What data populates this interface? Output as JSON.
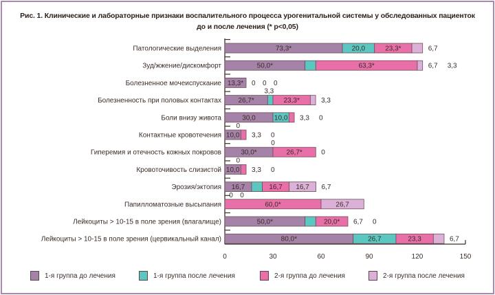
{
  "title": {
    "line1": "Рис. 1. Клинические и лабораторные признаки воспалительного процесса урогенитальной системы у обследованных пациенток",
    "line2": "до и после лечения (* p<0,05)"
  },
  "colors": {
    "g1_before": "#a582a8",
    "g1_after": "#5cc7c1",
    "g2_before": "#e96fa8",
    "g2_after": "#dcb1d8",
    "frame": "#a889ad",
    "axis": "#3a2c26"
  },
  "chart_data": {
    "type": "bar",
    "orientation": "horizontal",
    "stacked": true,
    "title": "Рис. 1. Клинические и лабораторные признаки воспалительного процесса урогенитальной системы у обследованных пациенток до и после лечения (* p<0,05)",
    "xlabel": "",
    "ylabel": "",
    "xlim": [
      0,
      150
    ],
    "xticks": [
      "0",
      "30",
      "60",
      "90",
      "120",
      "150"
    ],
    "grid": false,
    "legend_position": "bottom",
    "categories": [
      "Патологические выделения",
      "Зуд/жжение/дискомфорт",
      "Болезненное мочеиспускание",
      "Болезненность при половых контактах",
      "Боли внизу живота",
      "Контактные кровотечения",
      "Гиперемия и отечность кожных покровов",
      "Кровоточивость слизистой",
      "Эрозия/эктопия",
      "Папилломатозные высыпания",
      "Лейкоциты > 10-15 в поле зрения (влагалище)",
      "Лейкоциты > 10-15 в поле зрения (цервикальный канал)"
    ],
    "series": [
      {
        "name": "1-я группа до лечения",
        "values": [
          73.3,
          50.0,
          13.3,
          26.7,
          30.0,
          10.0,
          30.0,
          10.0,
          16.7,
          0,
          50.0,
          80.0
        ],
        "labels": [
          "73,3*",
          "50,0*",
          "13,3*",
          "26,7*",
          "30,0",
          "10,0",
          "30,0*",
          "10,0",
          "16,7",
          "0",
          "50,0*",
          "80,0*"
        ]
      },
      {
        "name": "1-я группа после лечения",
        "values": [
          20.0,
          6.7,
          0,
          3.3,
          10.0,
          0,
          0,
          0,
          6.7,
          0,
          6.7,
          26.7
        ],
        "labels": [
          "20,0",
          "6,7",
          "0",
          "3,3",
          "10,0",
          "0",
          "0",
          "0",
          "6,7",
          "0",
          "6,7",
          "26,7"
        ]
      },
      {
        "name": "2-я группа до лечения",
        "values": [
          23.3,
          63.3,
          0,
          23.3,
          3.3,
          3.3,
          26.7,
          3.3,
          16.7,
          60.0,
          20.0,
          23.3
        ],
        "labels": [
          "23,3*",
          "63,3*",
          "0",
          "23,3*",
          "3,3",
          "3,3",
          "26,7*",
          "3,3",
          "16,7",
          "60,0*",
          "20,0*",
          "23,3"
        ]
      },
      {
        "name": "2-я группа после лечения",
        "values": [
          6.7,
          3.3,
          0,
          3.3,
          0,
          0,
          0,
          0,
          16.7,
          26.7,
          0,
          6.7
        ],
        "labels": [
          "6,7",
          "3,3",
          "0",
          "3,3",
          "0",
          "0",
          "0",
          "0",
          "16,7",
          "26,7",
          "0",
          "6,7"
        ]
      }
    ]
  },
  "legend": [
    {
      "label": "1-я группа до лечения"
    },
    {
      "label": "1-я группа после лечения"
    },
    {
      "label": "2-я группа до лечения"
    },
    {
      "label": "2-я группа после лечения"
    }
  ]
}
